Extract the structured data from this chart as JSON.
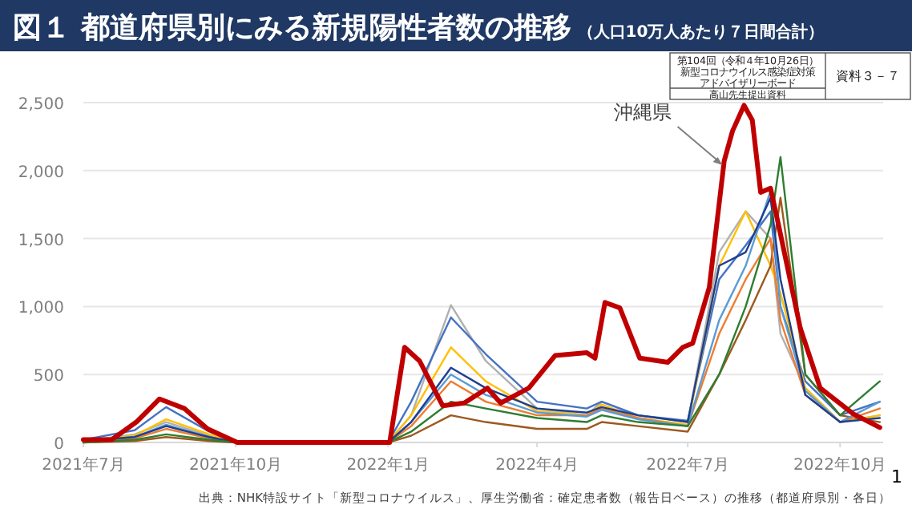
{
  "chart_data": {
    "type": "line",
    "title": "図１ 都道府県別にみる新規陽性者数の推移",
    "subtitle": "（人口10万人あたり７日間合計）",
    "xlim": [
      "2021-07-01",
      "2022-10-27"
    ],
    "xticks": [
      {
        "value": "2021-07-01",
        "label": "2021年7月"
      },
      {
        "value": "2021-10-01",
        "label": "2021年10月"
      },
      {
        "value": "2022-01-01",
        "label": "2022年1月"
      },
      {
        "value": "2022-04-01",
        "label": "2022年4月"
      },
      {
        "value": "2022-07-01",
        "label": "2022年7月"
      },
      {
        "value": "2022-10-01",
        "label": "2022年10月"
      }
    ],
    "ylim": [
      0,
      2500
    ],
    "yticks": [
      {
        "value": 0,
        "label": "0"
      },
      {
        "value": 500,
        "label": "500"
      },
      {
        "value": 1000,
        "label": "1,000"
      },
      {
        "value": 1500,
        "label": "1,500"
      },
      {
        "value": 2000,
        "label": "2,000"
      },
      {
        "value": 2500,
        "label": "2,500"
      }
    ],
    "grid": "y",
    "line_style": "solid",
    "x": [
      "2021-07-01",
      "2021-08-01",
      "2021-08-20",
      "2021-09-15",
      "2021-10-01",
      "2022-01-01",
      "2022-01-15",
      "2022-02-08",
      "2022-03-01",
      "2022-04-01",
      "2022-05-01",
      "2022-05-10",
      "2022-06-01",
      "2022-07-01",
      "2022-07-20",
      "2022-08-05",
      "2022-08-20",
      "2022-08-26",
      "2022-09-10",
      "2022-10-01",
      "2022-10-25"
    ],
    "series": [
      {
        "color": "#b0b0b0",
        "values": [
          10,
          60,
          150,
          50,
          0,
          0,
          200,
          1010,
          600,
          250,
          200,
          300,
          200,
          150,
          1400,
          1700,
          1500,
          800,
          400,
          150,
          200
        ]
      },
      {
        "color": "#4472c4",
        "values": [
          20,
          90,
          260,
          80,
          0,
          0,
          300,
          920,
          650,
          300,
          250,
          300,
          200,
          160,
          1200,
          1450,
          1700,
          1000,
          450,
          200,
          300
        ]
      },
      {
        "color": "#ffc000",
        "values": [
          10,
          50,
          170,
          60,
          0,
          0,
          200,
          700,
          450,
          230,
          200,
          280,
          180,
          130,
          1300,
          1700,
          1300,
          1100,
          400,
          150,
          200
        ]
      },
      {
        "color": "#9c5a1e",
        "values": [
          0,
          10,
          40,
          10,
          0,
          0,
          50,
          200,
          150,
          100,
          100,
          150,
          120,
          80,
          500,
          900,
          1300,
          1800,
          500,
          200,
          150
        ]
      },
      {
        "color": "#ed7d31",
        "values": [
          0,
          30,
          100,
          30,
          0,
          0,
          120,
          450,
          300,
          200,
          200,
          250,
          180,
          120,
          800,
          1200,
          1500,
          900,
          350,
          150,
          250
        ]
      },
      {
        "color": "#5b9bd5",
        "values": [
          10,
          40,
          130,
          40,
          0,
          0,
          150,
          500,
          350,
          220,
          190,
          240,
          170,
          120,
          900,
          1300,
          1850,
          1000,
          380,
          150,
          300
        ]
      },
      {
        "color": "#1f3f8f",
        "values": [
          10,
          40,
          120,
          40,
          0,
          0,
          150,
          550,
          400,
          250,
          220,
          260,
          200,
          150,
          1300,
          1400,
          1800,
          1200,
          350,
          150,
          180
        ]
      },
      {
        "color": "#2e7d32",
        "values": [
          0,
          20,
          60,
          20,
          0,
          0,
          80,
          300,
          250,
          180,
          150,
          200,
          150,
          120,
          500,
          1000,
          1600,
          2100,
          500,
          200,
          450
        ]
      },
      {
        "color": "#c00000",
        "x": [
          "2021-07-01",
          "2021-07-18",
          "2021-08-02",
          "2021-08-16",
          "2021-08-31",
          "2021-09-14",
          "2021-10-02",
          "2022-01-02",
          "2022-01-11",
          "2022-01-20",
          "2022-02-03",
          "2022-02-16",
          "2022-03-02",
          "2022-03-10",
          "2022-03-27",
          "2022-04-12",
          "2022-05-01",
          "2022-05-06",
          "2022-05-12",
          "2022-05-21",
          "2022-06-02",
          "2022-06-19",
          "2022-06-28",
          "2022-07-04",
          "2022-07-14",
          "2022-07-23",
          "2022-07-28",
          "2022-08-04",
          "2022-08-09",
          "2022-08-14",
          "2022-08-20",
          "2022-08-25",
          "2022-09-07",
          "2022-09-19",
          "2022-10-09",
          "2022-10-25"
        ],
        "values": [
          20,
          20,
          150,
          320,
          250,
          100,
          0,
          0,
          700,
          600,
          270,
          290,
          400,
          290,
          400,
          640,
          660,
          620,
          1030,
          990,
          620,
          590,
          700,
          730,
          1140,
          2070,
          2290,
          2480,
          2370,
          1840,
          1870,
          1590,
          840,
          400,
          210,
          110
        ]
      }
    ],
    "annotations": [
      {
        "text": "沖縄県",
        "x": "2022-07-22",
        "y": 2040
      },
      "出典：NHK特設サイト「新型コロナウイルス」、厚生労働省：確定患者数（報告日ベース）の推移（都道府県別・各日）",
      "1",
      "第104回（令和４年10月26日）",
      "新型コロナウイルス感染症対策",
      "アドバイザリーボード",
      "高山先生提出資料",
      "資料３－７"
    ]
  }
}
